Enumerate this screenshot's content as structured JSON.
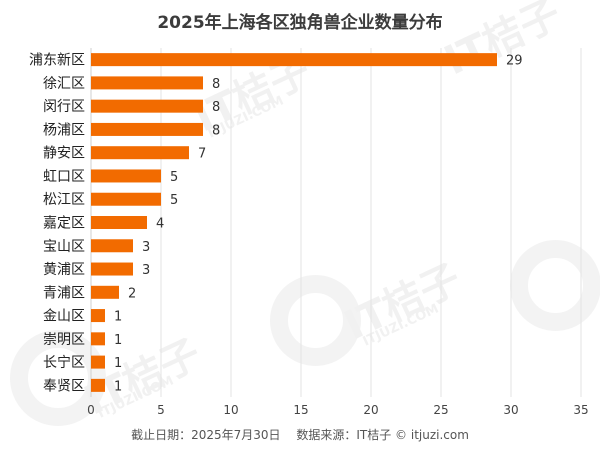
{
  "chart_data": {
    "type": "bar",
    "orientation": "horizontal",
    "title": "2025年上海各区独角兽企业数量分布",
    "categories": [
      "浦东新区",
      "徐汇区",
      "闵行区",
      "杨浦区",
      "静安区",
      "虹口区",
      "松江区",
      "嘉定区",
      "宝山区",
      "黄浦区",
      "青浦区",
      "金山区",
      "崇明区",
      "长宁区",
      "奉贤区"
    ],
    "values": [
      29,
      8,
      8,
      8,
      7,
      5,
      5,
      4,
      3,
      3,
      2,
      1,
      1,
      1,
      1
    ],
    "xlim": [
      0,
      35
    ],
    "xticks": [
      0,
      5,
      10,
      15,
      20,
      25,
      30,
      35
    ],
    "grid": true,
    "bar_color": "#f26b00",
    "data_labels": true
  },
  "footer": {
    "date": "截止日期：2025年7月30日",
    "source": "数据来源：IT桔子 © itjuzi.com"
  },
  "watermark": {
    "brand": "IT桔子",
    "site": "ITJUZI.COM"
  }
}
